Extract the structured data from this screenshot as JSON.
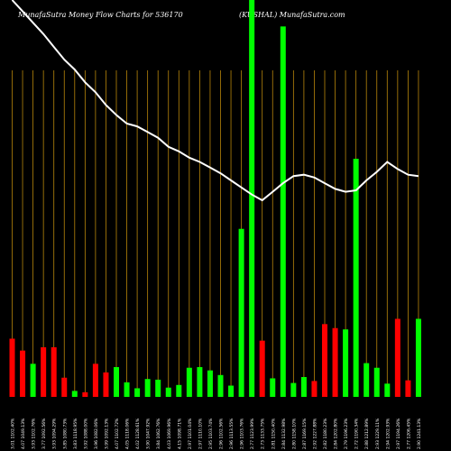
{
  "header": {
    "title_left": "MunafaSutra  Money Flow  Charts for 536170",
    "title_right": "(KUSHAL) MunafaSutra.com"
  },
  "colors": {
    "background": "#000000",
    "up_bar": "#00ff00",
    "down_bar": "#ff0000",
    "gridline": "#b8860b",
    "price_line": "#ffffff"
  },
  "chart_data": {
    "type": "bar",
    "categories": [
      "3.01 1102.40%",
      "4.07 1049.13%",
      "3.93 1102.76%",
      "3.77 1092.56%",
      "3.93 1094.29%",
      "3.85 1080.73%",
      "3.83 1118.95%",
      "3.92 1088.00%",
      "3.96 1082.06%",
      "3.99 1092.13%",
      "4.07 1102.72%",
      "4.05 1118.06%",
      "4.02 1128.61%",
      "3.90 1047.92%",
      "3.84 1062.76%",
      "4.03 1069.96%",
      "4.15 1098.71%",
      "2.97 1101.04%",
      "2.97 1110.10%",
      "2.95 1103.74%",
      "2.96 1102.56%",
      "2.96 1113.55%",
      "2.96 1103.76%",
      "2.77 1123.99%",
      "2.73 1133.75%",
      "2.81 1150.40%",
      "2.84 1132.98%",
      "2.80 1158.10%",
      "2.87 1169.15%",
      "2.92 1227.88%",
      "2.82 1180.23%",
      "2.84 1202.80%",
      "2.79 1196.23%",
      "2.72 1190.34%",
      "2.88 1212.89%",
      "2.93 1229.11%",
      "2.94 1202.93%",
      "2.97 1194.26%",
      "2.77 1206.45%",
      "2.90 1241.13%"
    ],
    "series": [
      {
        "values": [
          88,
          70,
          50,
          75,
          75,
          29,
          9,
          7,
          50,
          37,
          45,
          22,
          13,
          27,
          26,
          14,
          18,
          44,
          45,
          40,
          33,
          17,
          254,
          600,
          85,
          28,
          560,
          21,
          30,
          24,
          110,
          104,
          102,
          360,
          51,
          44,
          20,
          118,
          25,
          118
        ],
        "directions": [
          "down",
          "down",
          "up",
          "down",
          "down",
          "down",
          "up",
          "down",
          "down",
          "down",
          "up",
          "up",
          "up",
          "up",
          "up",
          "up",
          "up",
          "up",
          "up",
          "up",
          "up",
          "up",
          "up",
          "up",
          "down",
          "up",
          "up",
          "up",
          "up",
          "down",
          "down",
          "down",
          "up",
          "up",
          "up",
          "up",
          "up",
          "down",
          "down",
          "up"
        ]
      },
      {
        "values": [
          1085,
          1045,
          1005,
          965,
          920,
          875,
          840,
          795,
          760,
          715,
          680,
          650,
          640,
          620,
          600,
          568,
          552,
          530,
          515,
          495,
          475,
          450,
          425,
          400,
          380,
          410,
          440,
          465,
          470,
          460,
          440,
          420,
          410,
          415,
          450,
          480,
          515,
          490,
          470,
          465
        ]
      }
    ]
  }
}
